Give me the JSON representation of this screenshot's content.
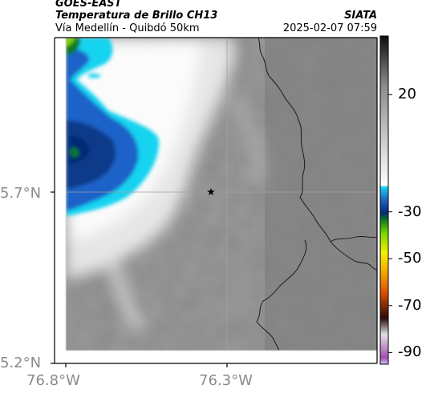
{
  "header": {
    "satellite": "GOES-EAST",
    "product": "Temperatura de Brillo CH13",
    "region": "Vía Medellín - Quibdó 50km",
    "agency": "SIATA",
    "datetime": "2025-02-07 07:59"
  },
  "axes": {
    "lat_labels": [
      "5.7°N",
      "5.2°N"
    ],
    "lon_labels": [
      "76.8°W",
      "76.3°W"
    ]
  },
  "colorbar": {
    "tick_labels": [
      "20",
      "-30",
      "-50",
      "-70",
      "-90"
    ],
    "tick_values": [
      20,
      -30,
      -50,
      -70,
      -90
    ],
    "range": [
      -95,
      45
    ]
  },
  "colors": {
    "cloud_top_deep": "#0a2f7a",
    "cloud_top_mid": "#1e62c8",
    "cloud_top_cyan": "#19d3ef",
    "cloud_edge_white": "#ffffff",
    "background_gray": "#8e8e8e",
    "border_line": "#1a1a1a"
  },
  "marker": {
    "symbol": "★",
    "name": "reference-point"
  }
}
